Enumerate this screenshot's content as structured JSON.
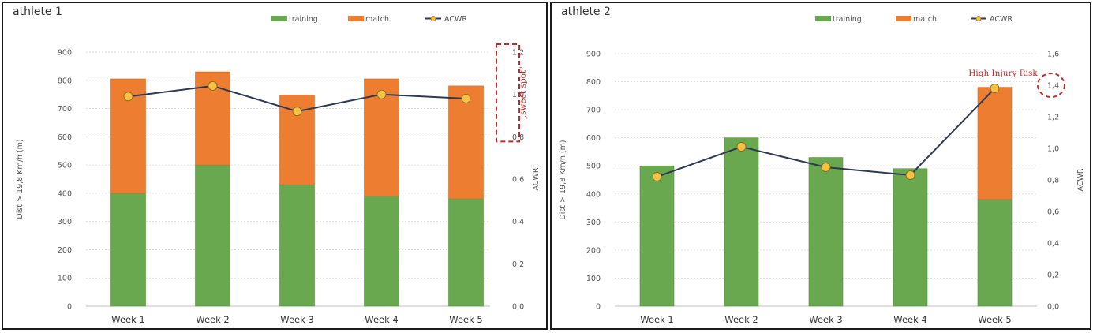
{
  "colors": {
    "training": "#6aa84f",
    "match": "#ed7d31",
    "acwr_line": "#2e3a55",
    "acwr_marker": "#f6c244",
    "annotation": "#c0282a"
  },
  "chart_data": [
    {
      "title": "athlete 1",
      "type": "bar",
      "stacked": true,
      "categories": [
        "Week 1",
        "Week 2",
        "Week 3",
        "Week 4",
        "Week 5"
      ],
      "series": [
        {
          "name": "training",
          "values": [
            400,
            500,
            430,
            390,
            380
          ]
        },
        {
          "name": "match",
          "values": [
            405,
            330,
            318,
            415,
            400
          ]
        }
      ],
      "line_series": {
        "name": "ACWR",
        "values": [
          0.99,
          1.04,
          0.92,
          1.0,
          0.98
        ],
        "axis": "right"
      },
      "ylabel": "Dist > 19,8 Km/h (m)",
      "y2label": "ACWR",
      "ylim": [
        0,
        900
      ],
      "y2lim": [
        0,
        1.2
      ],
      "yticks": [
        "0",
        "100",
        "200",
        "300",
        "400",
        "500",
        "600",
        "700",
        "800",
        "900"
      ],
      "y2ticks": [
        "0,0",
        "0,2",
        "0,4",
        "0,6",
        "0,8",
        "1,0",
        "1,2"
      ],
      "legend": [
        "training",
        "match",
        "ACWR"
      ],
      "legend_position": "top",
      "annotation": {
        "text": "„sweet spot\"",
        "range": [
          0.8,
          1.2
        ]
      }
    },
    {
      "title": "athlete 2",
      "type": "bar",
      "stacked": true,
      "categories": [
        "Week 1",
        "Week 2",
        "Week 3",
        "Week 4",
        "Week 5"
      ],
      "series": [
        {
          "name": "training",
          "values": [
            500,
            600,
            530,
            490,
            380
          ]
        },
        {
          "name": "match",
          "values": [
            0,
            0,
            0,
            0,
            400
          ]
        }
      ],
      "line_series": {
        "name": "ACWR",
        "values": [
          0.82,
          1.01,
          0.88,
          0.83,
          1.38
        ],
        "axis": "right"
      },
      "ylabel": "Dist > 19,8 Km/h (m)",
      "y2label": "ACWR",
      "ylim": [
        0,
        900
      ],
      "y2lim": [
        0,
        1.6
      ],
      "yticks": [
        "0",
        "100",
        "200",
        "300",
        "400",
        "500",
        "600",
        "700",
        "800",
        "900"
      ],
      "y2ticks": [
        "0,0",
        "0,2",
        "0,4",
        "0,6",
        "0,8",
        "1,0",
        "1,2",
        "1,4",
        "1,6"
      ],
      "legend": [
        "training",
        "match",
        "ACWR"
      ],
      "legend_position": "top",
      "annotation": {
        "text": "High Injury Risk",
        "highlight_value": 1.4
      }
    }
  ]
}
